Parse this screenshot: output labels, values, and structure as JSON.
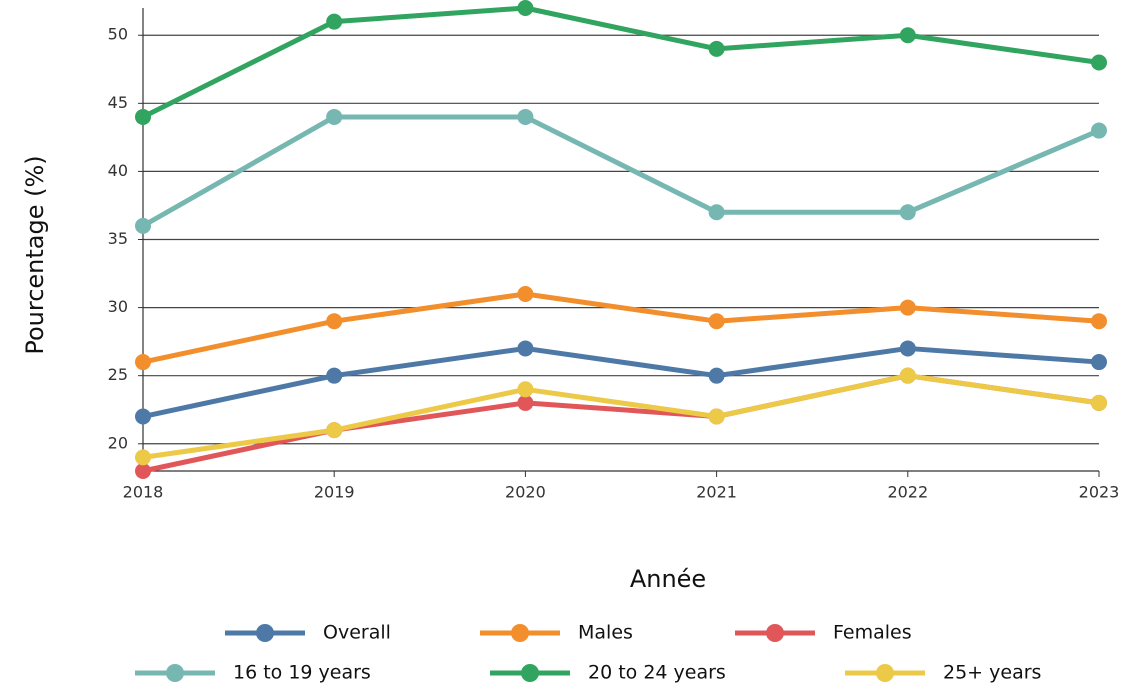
{
  "chart_data": {
    "type": "line",
    "x_label": "Année",
    "y_label": "Pourcentage (%)",
    "categories": [
      "2018",
      "2019",
      "2020",
      "2021",
      "2022",
      "2023"
    ],
    "series": [
      {
        "name": "Overall",
        "color": "#4e79a7",
        "values": [
          22,
          25,
          27,
          25,
          27,
          26
        ]
      },
      {
        "name": "Males",
        "color": "#f28e2b",
        "values": [
          26,
          29,
          31,
          29,
          30,
          29
        ]
      },
      {
        "name": "Females",
        "color": "#e15759",
        "values": [
          18,
          21,
          23,
          22,
          25,
          23
        ]
      },
      {
        "name": "16 to 19 years",
        "color": "#76b7b2",
        "values": [
          36,
          44,
          44,
          37,
          37,
          43
        ]
      },
      {
        "name": "20 to 24 years",
        "color": "#31a45f",
        "values": [
          44,
          51,
          52,
          49,
          50,
          48
        ]
      },
      {
        "name": "25+ years",
        "color": "#edc948",
        "values": [
          19,
          21,
          24,
          22,
          25,
          23
        ]
      }
    ],
    "ylim": [
      18,
      52
    ],
    "yticks": [
      20,
      25,
      30,
      35,
      40,
      45,
      50
    ],
    "grid": true,
    "legend": "bottom"
  }
}
